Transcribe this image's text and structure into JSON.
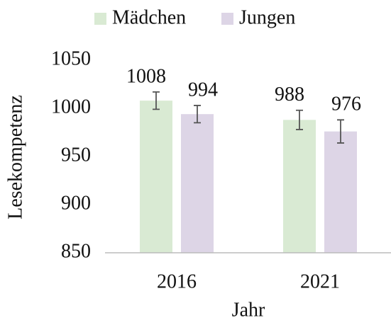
{
  "chart_data": {
    "type": "bar",
    "x_label": "Jahr",
    "y_label": "Lesekompetenz",
    "categories": [
      "2016",
      "2021"
    ],
    "series": [
      {
        "name": "Mädchen",
        "color": "#d9ead3",
        "values": [
          1008,
          988
        ],
        "errors": [
          9,
          10
        ]
      },
      {
        "name": "Jungen",
        "color": "#ddd5e6",
        "values": [
          994,
          976
        ],
        "errors": [
          9,
          12
        ]
      }
    ],
    "ylim": [
      850,
      1050
    ],
    "yticks": [
      850,
      900,
      950,
      1000,
      1050
    ],
    "legend": "top",
    "grid": false
  }
}
